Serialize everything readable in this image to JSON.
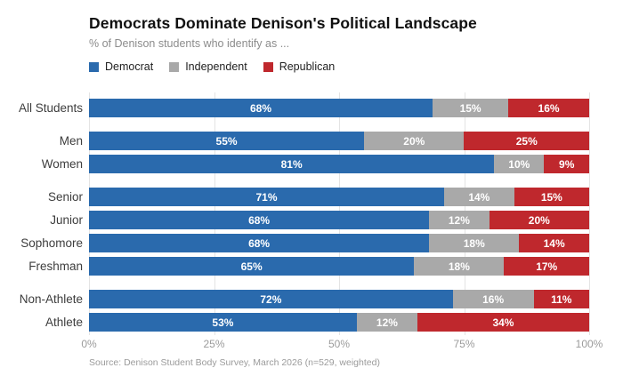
{
  "header": {
    "title": "Democrats Dominate Denison's Political Landscape",
    "subtitle": "% of Denison students who identify as ..."
  },
  "colors": {
    "democrat": "#2a6aad",
    "independent": "#a9a9a9",
    "republican": "#bf282d",
    "gridline": "#e4e4e4"
  },
  "legend": [
    {
      "label": "Democrat",
      "color": "#2a6aad"
    },
    {
      "label": "Independent",
      "color": "#a9a9a9"
    },
    {
      "label": "Republican",
      "color": "#bf282d"
    }
  ],
  "chart_data": {
    "type": "bar",
    "orientation": "horizontal",
    "stacked": true,
    "normalized_to_100": true,
    "title": "Democrats Dominate Denison's Political Landscape",
    "subtitle": "% of Denison students who identify as ...",
    "categories": [
      "All Students",
      "Men",
      "Women",
      "Senior",
      "Junior",
      "Sophomore",
      "Freshman",
      "Non-Athlete",
      "Athlete"
    ],
    "row_groups": [
      1,
      2,
      4,
      2
    ],
    "series": [
      {
        "name": "Democrat",
        "color": "#2a6aad",
        "values": [
          68,
          55,
          81,
          71,
          68,
          68,
          65,
          72,
          53
        ]
      },
      {
        "name": "Independent",
        "color": "#a9a9a9",
        "values": [
          15,
          20,
          10,
          14,
          12,
          18,
          18,
          16,
          12
        ]
      },
      {
        "name": "Republican",
        "color": "#bf282d",
        "values": [
          16,
          25,
          9,
          15,
          20,
          14,
          17,
          11,
          34
        ]
      }
    ],
    "value_label_suffix": "%",
    "xlim": [
      0,
      100
    ],
    "x_ticks": [
      "0%",
      "25%",
      "50%",
      "75%",
      "100%"
    ],
    "grid": true,
    "legend_position": "top"
  },
  "footer": {
    "source": "Source: Denison Student Body Survey, March 2026 (n=529, weighted)"
  }
}
